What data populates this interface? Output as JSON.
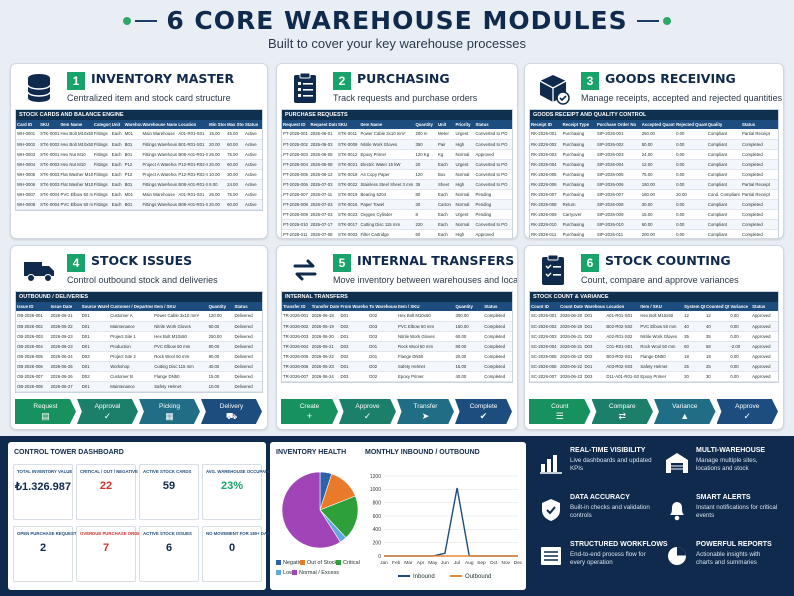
{
  "header": {
    "title": "6 CORE WAREHOUSE MODULES",
    "subtitle": "Built to cover your key warehouse processes"
  },
  "modules": [
    {
      "num": "1",
      "title": "INVENTORY MASTER",
      "desc": "Centralized item and stock card structure",
      "icon": "database-icon",
      "table": {
        "caption": "STOCK CARDS AND BALANCE ENGINE",
        "headers": [
          "Card ID",
          "SKU",
          "Item Name",
          "Category",
          "Unit",
          "Warehouse Code",
          "Warehouse Name",
          "Location",
          "Min Stock",
          "Max Stock",
          "Status"
        ],
        "rows": [
          [
            "WH-0001",
            "STK-0001",
            "Hex Bolt M10x50",
            "Fittings",
            "Each",
            "M01",
            "Main Warehouse",
            "A01-R01-S01",
            "15.00",
            "45.00",
            "Active"
          ],
          [
            "WH-0002",
            "STK-0002",
            "Hex Bolt M10x50",
            "Fittings",
            "Each",
            "B01",
            "Fittings Warehouse",
            "B01-R01-S01",
            "20.00",
            "60.00",
            "Active"
          ],
          [
            "WH-0003",
            "STK-0001",
            "Hex Nut M10",
            "Fittings",
            "Each",
            "B01",
            "Fittings Warehouse",
            "B08-A01-R01-S01",
            "25.00",
            "75.00",
            "Active"
          ],
          [
            "WH-0004",
            "STK-0003",
            "Hex Nut M10",
            "Fittings",
            "Each",
            "P12",
            "Project A Warehouse",
            "P12-R01-R02-S01",
            "20.00",
            "60.00",
            "Active"
          ],
          [
            "WH-0005",
            "STK-0003",
            "Flat Washer M10",
            "Fittings",
            "Each",
            "P12",
            "Project A Warehouse",
            "P12-R01-R02-S01",
            "10.00",
            "30.00",
            "Active"
          ],
          [
            "WH-0006",
            "STK-0003",
            "Flat Washer M10",
            "Fittings",
            "Each",
            "B01",
            "Fittings Warehouse",
            "B08-A01-R01-S01",
            "8.00",
            "24.00",
            "Active"
          ],
          [
            "WH-0007",
            "STK-0004",
            "PVC Elbow 50 mm",
            "Fittings",
            "Each",
            "M01",
            "Main Warehouse",
            "A01-R01-S01",
            "25.00",
            "75.00",
            "Active"
          ],
          [
            "WH-0008",
            "STK-0004",
            "PVC Elbow 50 mm",
            "Fittings",
            "Each",
            "B01",
            "Fittings Warehouse",
            "B08-A01-R01-S01",
            "20.00",
            "60.00",
            "Active"
          ]
        ]
      }
    },
    {
      "num": "2",
      "title": "PURCHASING",
      "desc": "Track requests and purchase orders",
      "icon": "clipboard-list-icon",
      "table": {
        "caption": "PURCHASE REQUESTS",
        "headers": [
          "Request ID",
          "Request Date",
          "SKU",
          "Item Name",
          "Quantity",
          "Unit",
          "Priority",
          "Status"
        ],
        "rows": [
          [
            "PT-2026-001",
            "2026-06-01",
            "STK-0011",
            "Power Cable 3x10 mm²",
            "200 m",
            "Meter",
            "Urgent",
            "Converted to PO"
          ],
          [
            "PT-2026-002",
            "2026-06-03",
            "STK-0009",
            "Nitrile Work Gloves",
            "350",
            "Pair",
            "High",
            "Converted to PO"
          ],
          [
            "PT-2026-003",
            "2026-06-05",
            "STK-0012",
            "Epoxy Primer",
            "120 Kg",
            "Kg",
            "Normal",
            "Approved"
          ],
          [
            "PT-2026-004",
            "2026-06-08",
            "STK-0021",
            "Electric Water 15 kW",
            "20",
            "Each",
            "Urgent",
            "Converted to PO"
          ],
          [
            "PT-2026-005",
            "2026-06-12",
            "STK-0018",
            "A4 Copy Paper",
            "120",
            "Box",
            "Normal",
            "Converted to PO"
          ],
          [
            "PT-2026-006",
            "2026-07-03",
            "STK-0022",
            "Stainless Steel Sheet 3 mm",
            "35",
            "Sheet",
            "High",
            "Converted to PO"
          ],
          [
            "PT-2026-007",
            "2026-07-11",
            "STK-0019",
            "Bearing 6204",
            "80",
            "Each",
            "Normal",
            "Pending"
          ],
          [
            "PT-2026-008",
            "2026-07-03",
            "STK-0016",
            "Paper Towel",
            "30",
            "Carton",
            "Normal",
            "Pending"
          ],
          [
            "PT-2026-009",
            "2026-07-03",
            "STK-0023",
            "Oxygen Cylinder",
            "8",
            "Each",
            "Urgent",
            "Pending"
          ],
          [
            "PT-2026-010",
            "2026-07-17",
            "STK-0017",
            "Cutting Disc 115 mm",
            "220",
            "Each",
            "Normal",
            "Converted to PO"
          ],
          [
            "PT-2026-011",
            "2026-07-08",
            "STK-0003",
            "Filter Cartridge",
            "60",
            "Each",
            "High",
            "Approved"
          ],
          [
            "PT-2026-012",
            "2026-07-09",
            "STK-0007",
            "Rock Wool 50 mm",
            "240 m²",
            "m²",
            "Normal",
            "Approved"
          ]
        ]
      }
    },
    {
      "num": "3",
      "title": "GOODS RECEIVING",
      "desc": "Manage receipts, accepted and rejected quantities",
      "icon": "package-check-icon",
      "table": {
        "caption": "GOODS RECEIPT AND QUALITY CONTROL",
        "headers": [
          "Receipt ID",
          "Receipt Type",
          "Purchase Order No",
          "Accepted Quantity",
          "Rejected Quantity",
          "Quality",
          "Status"
        ],
        "rows": [
          [
            "RK-2026-001",
            "Purchasing",
            "SIP-2026-001",
            "250.00",
            "0.00",
            "Compliant",
            "Partial Receipt"
          ],
          [
            "RK-2026-002",
            "Purchasing",
            "SIP-2026-002",
            "50.00",
            "0.00",
            "Compliant",
            "Completed"
          ],
          [
            "RK-2026-003",
            "Purchasing",
            "SIP-2026-003",
            "24.00",
            "0.00",
            "Compliant",
            "Completed"
          ],
          [
            "RK-2026-004",
            "Purchasing",
            "SIP-2026-004",
            "12.00",
            "0.00",
            "Compliant",
            "Completed"
          ],
          [
            "RK-2026-005",
            "Purchasing",
            "SIP-2026-005",
            "75.00",
            "0.00",
            "Compliant",
            "Completed"
          ],
          [
            "RK-2026-006",
            "Purchasing",
            "SIP-2026-006",
            "150.00",
            "0.00",
            "Compliant",
            "Partial Receipt"
          ],
          [
            "RK-2026-007",
            "Purchasing",
            "SIP-2026-007",
            "180.00",
            "20.00",
            "Cond. Compliant",
            "Partial Receipt"
          ],
          [
            "RK-2026-008",
            "Return",
            "SIP-2026-008",
            "30.00",
            "0.00",
            "Compliant",
            "Completed"
          ],
          [
            "RK-2026-009",
            "Carryover",
            "SIP-2026-009",
            "15.00",
            "0.00",
            "Compliant",
            "Completed"
          ],
          [
            "RK-2026-010",
            "Purchasing",
            "SIP-2026-010",
            "60.00",
            "0.00",
            "Compliant",
            "Completed"
          ],
          [
            "RK-2026-011",
            "Purchasing",
            "SIP-2026-011",
            "200.00",
            "0.00",
            "Compliant",
            "Completed"
          ],
          [
            "RK-2026-012",
            "Purchasing",
            "SIP-2026-012",
            "15.00",
            "0.00",
            "Compliant",
            "Under Inspection"
          ]
        ]
      }
    },
    {
      "num": "4",
      "title": "STOCK ISSUES",
      "desc": "Control outbound stock and deliveries",
      "icon": "truck-icon",
      "table": {
        "caption": "OUTBOUND / DELIVERIES",
        "headers": [
          "Issue ID",
          "Issue Date",
          "Source Warehouse",
          "Customer / Department",
          "Item / SKU",
          "Quantity",
          "Status"
        ],
        "rows": [
          [
            "OB-2026-001",
            "2026-06-21",
            "D01",
            "Customer A",
            "Power Cable 3x10 mm²",
            "120.00",
            "Delivered"
          ],
          [
            "OB-2026-002",
            "2026-06-22",
            "D01",
            "Maintenance",
            "Nitrile Work Gloves",
            "50.00",
            "Delivered"
          ],
          [
            "OB-2026-003",
            "2026-06-23",
            "D01",
            "Project Site 1",
            "Hex Bolt M10x50",
            "250.00",
            "Delivered"
          ],
          [
            "OB-2026-004",
            "2026-06-23",
            "D01",
            "Production",
            "PVC Elbow 50 mm",
            "80.00",
            "Delivered"
          ],
          [
            "OB-2026-005",
            "2026-06-24",
            "D03",
            "Project Site 2",
            "Rock Wool 50 mm",
            "90.00",
            "Delivered"
          ],
          [
            "OB-2026-006",
            "2026-06-25",
            "D01",
            "Workshop",
            "Cutting Disc 115 mm",
            "40.00",
            "Delivered"
          ],
          [
            "OB-2026-007",
            "2026-06-26",
            "D02",
            "Customer B",
            "Flange DN50",
            "15.00",
            "Delivered"
          ],
          [
            "OB-2026-008",
            "2026-06-27",
            "D01",
            "Maintenance",
            "Safety Helmet",
            "10.00",
            "Delivered"
          ]
        ]
      },
      "flow": [
        {
          "label": "Request",
          "icon": "document-icon"
        },
        {
          "label": "Approval",
          "icon": "check-icon"
        },
        {
          "label": "Picking",
          "icon": "boxes-icon"
        },
        {
          "label": "Delivery",
          "icon": "truck-icon"
        }
      ]
    },
    {
      "num": "5",
      "title": "INTERNAL TRANSFERS",
      "desc": "Move inventory between warehouses and locations",
      "icon": "transfer-arrows-icon",
      "table": {
        "caption": "INTERNAL TRANSFERS",
        "headers": [
          "Transfer ID",
          "Transfer Date",
          "From Warehouse",
          "To Warehouse",
          "Item / SKU",
          "Quantity",
          "Status"
        ],
        "rows": [
          [
            "TR-2026-001",
            "2026-06-18",
            "D01",
            "D02",
            "Hex Bolt M10x50",
            "300.00",
            "Completed"
          ],
          [
            "TR-2026-002",
            "2026-06-19",
            "D02",
            "D03",
            "PVC Elbow 50 mm",
            "150.00",
            "Completed"
          ],
          [
            "TR-2026-003",
            "2026-06-20",
            "D01",
            "D03",
            "Nitrile Work Gloves",
            "60.00",
            "Completed"
          ],
          [
            "TR-2026-004",
            "2026-06-21",
            "D03",
            "D01",
            "Rock Wool 50 mm",
            "80.00",
            "Completed"
          ],
          [
            "TR-2026-005",
            "2026-06-22",
            "D02",
            "D01",
            "Flange DN50",
            "20.00",
            "Completed"
          ],
          [
            "TR-2026-006",
            "2026-06-23",
            "D01",
            "D02",
            "Safety Helmet",
            "15.00",
            "Completed"
          ],
          [
            "TR-2026-007",
            "2026-06-24",
            "D03",
            "D02",
            "Epoxy Primer",
            "40.00",
            "Completed"
          ]
        ]
      },
      "flow": [
        {
          "label": "Create",
          "icon": "plus-icon"
        },
        {
          "label": "Approve",
          "icon": "check-icon"
        },
        {
          "label": "Transfer",
          "icon": "send-icon"
        },
        {
          "label": "Complete",
          "icon": "check-circle-icon"
        }
      ]
    },
    {
      "num": "6",
      "title": "STOCK COUNTING",
      "desc": "Count, compare and approve variances",
      "icon": "clipboard-check-icon",
      "table": {
        "caption": "STOCK COUNT & VARIANCE",
        "headers": [
          "Count ID",
          "Count Date",
          "Warehouse",
          "Location",
          "Item / SKU",
          "System Qty",
          "Counted Qty",
          "Variance",
          "Status"
        ],
        "rows": [
          [
            "SC-2026-001",
            "2026-06-20",
            "D01",
            "A01-R01-S01",
            "Hex Bolt M10x50",
            "12",
            "12",
            "0.00",
            "Approved"
          ],
          [
            "SC-2026-002",
            "2026-06-20",
            "D01",
            "B02-R02-S02",
            "PVC Elbow 50 mm",
            "40",
            "40",
            "0.00",
            "Approved"
          ],
          [
            "SC-2026-003",
            "2026-06-21",
            "D02",
            "A02-R01-S02",
            "Nitrile Work Gloves",
            "35",
            "35",
            "0.00",
            "Approved"
          ],
          [
            "SC-2026-004",
            "2026-06-21",
            "D03",
            "C01-R01-S01",
            "Rock Wool 50 mm",
            "60",
            "58",
            "-2.00",
            "Approved"
          ],
          [
            "SC-2026-005",
            "2026-06-22",
            "D02",
            "B03-R02-S01",
            "Flange DN50",
            "18",
            "18",
            "0.00",
            "Approved"
          ],
          [
            "SC-2026-006",
            "2026-06-22",
            "D01",
            "A03-R02-S03",
            "Safety Helmet",
            "25",
            "25",
            "0.00",
            "Approved"
          ],
          [
            "SC-2026-007",
            "2026-06-23",
            "D03",
            "D11-A01-R01-S01",
            "Epoxy Primer",
            "30",
            "30",
            "0.00",
            "Approved"
          ]
        ]
      },
      "flow": [
        {
          "label": "Count",
          "icon": "list-icon"
        },
        {
          "label": "Compare",
          "icon": "compare-icon"
        },
        {
          "label": "Variance",
          "icon": "chart-icon"
        },
        {
          "label": "Approve",
          "icon": "check-icon"
        }
      ]
    }
  ],
  "dashboard": {
    "title": "CONTROL TOWER DASHBOARD",
    "kpis": [
      {
        "label": "TOTAL INVENTORY VALUE",
        "value": "₺1.326.987",
        "color": "#0f2a4d"
      },
      {
        "label": "CRITICAL / OUT / NEGATIVE",
        "value": "22",
        "color": "#d0312d"
      },
      {
        "label": "ACTIVE STOCK CARDS",
        "value": "59",
        "color": "#0f2a4d"
      },
      {
        "label": "AVG. WAREHOUSE OCCUPANCY",
        "value": "23%",
        "color": "#18a36a"
      },
      {
        "label": "OPEN PURCHASE REQUESTS",
        "value": "2",
        "color": "#0f2a4d"
      },
      {
        "label": "OVERDUE PURCHASE ORDERS",
        "value": "7",
        "color": "#d0312d"
      },
      {
        "label": "ACTIVE STOCK ISSUES",
        "value": "6",
        "color": "#0f2a4d"
      },
      {
        "label": "NO MOVEMENT FOR 180+ DAYS",
        "value": "0",
        "color": "#0f2a4d"
      }
    ]
  },
  "inventory_health": {
    "title": "INVENTORY HEALTH",
    "legend": [
      {
        "label": "Negative",
        "color": "#2e62a8"
      },
      {
        "label": "Out of Stock",
        "color": "#e87a2a"
      },
      {
        "label": "Critical",
        "color": "#2ea03a"
      },
      {
        "label": "Low",
        "color": "#5fa8e0"
      },
      {
        "label": "Normal / Excess",
        "color": "#a044b8"
      }
    ]
  },
  "monthly": {
    "title": "MONTHLY INBOUND / OUTBOUND",
    "legend_in": "Inbound",
    "legend_out": "Outbound"
  },
  "chart_data": [
    {
      "type": "pie",
      "title": "INVENTORY HEALTH",
      "labels": [
        "Negative",
        "Out of Stock",
        "Critical",
        "Low",
        "Normal / Excess"
      ],
      "values": [
        5,
        14,
        19,
        3,
        59
      ],
      "colors": [
        "#2e62a8",
        "#e87a2a",
        "#2ea03a",
        "#5fa8e0",
        "#a044b8"
      ]
    },
    {
      "type": "line",
      "title": "MONTHLY INBOUND / OUTBOUND",
      "categories": [
        "Jan",
        "Feb",
        "Mar",
        "Apr",
        "May",
        "Jun",
        "Jul",
        "Aug",
        "Sep",
        "Oct",
        "Nov",
        "Dec"
      ],
      "ylim": [
        0,
        1200
      ],
      "yticks": [
        0,
        200,
        400,
        600,
        800,
        1000,
        1200
      ],
      "series": [
        {
          "name": "Inbound",
          "color": "#1d4d7e",
          "values": [
            0,
            0,
            0,
            0,
            0,
            40,
            1020,
            0,
            0,
            0,
            0,
            0
          ]
        },
        {
          "name": "Outbound",
          "color": "#e8893a",
          "values": [
            0,
            0,
            0,
            0,
            0,
            0,
            0,
            0,
            0,
            0,
            0,
            0
          ]
        }
      ]
    }
  ],
  "features": [
    {
      "title": "REAL-TIME VISIBILITY",
      "desc": "Live dashboards and updated KPIs",
      "icon": "bar-chart-icon"
    },
    {
      "title": "MULTI-WAREHOUSE",
      "desc": "Manage multiple sites, locations and stock",
      "icon": "warehouse-icon"
    },
    {
      "title": "DATA ACCURACY",
      "desc": "Built-in checks and validation controls",
      "icon": "shield-check-icon"
    },
    {
      "title": "SMART ALERTS",
      "desc": "Instant notifications for critical events",
      "icon": "bell-icon"
    },
    {
      "title": "STRUCTURED WORKFLOWS",
      "desc": "End-to-end process flow for every operation",
      "icon": "workflow-icon"
    },
    {
      "title": "POWERFUL REPORTS",
      "desc": "Actionable insights with charts and summaries",
      "icon": "report-icon"
    }
  ]
}
